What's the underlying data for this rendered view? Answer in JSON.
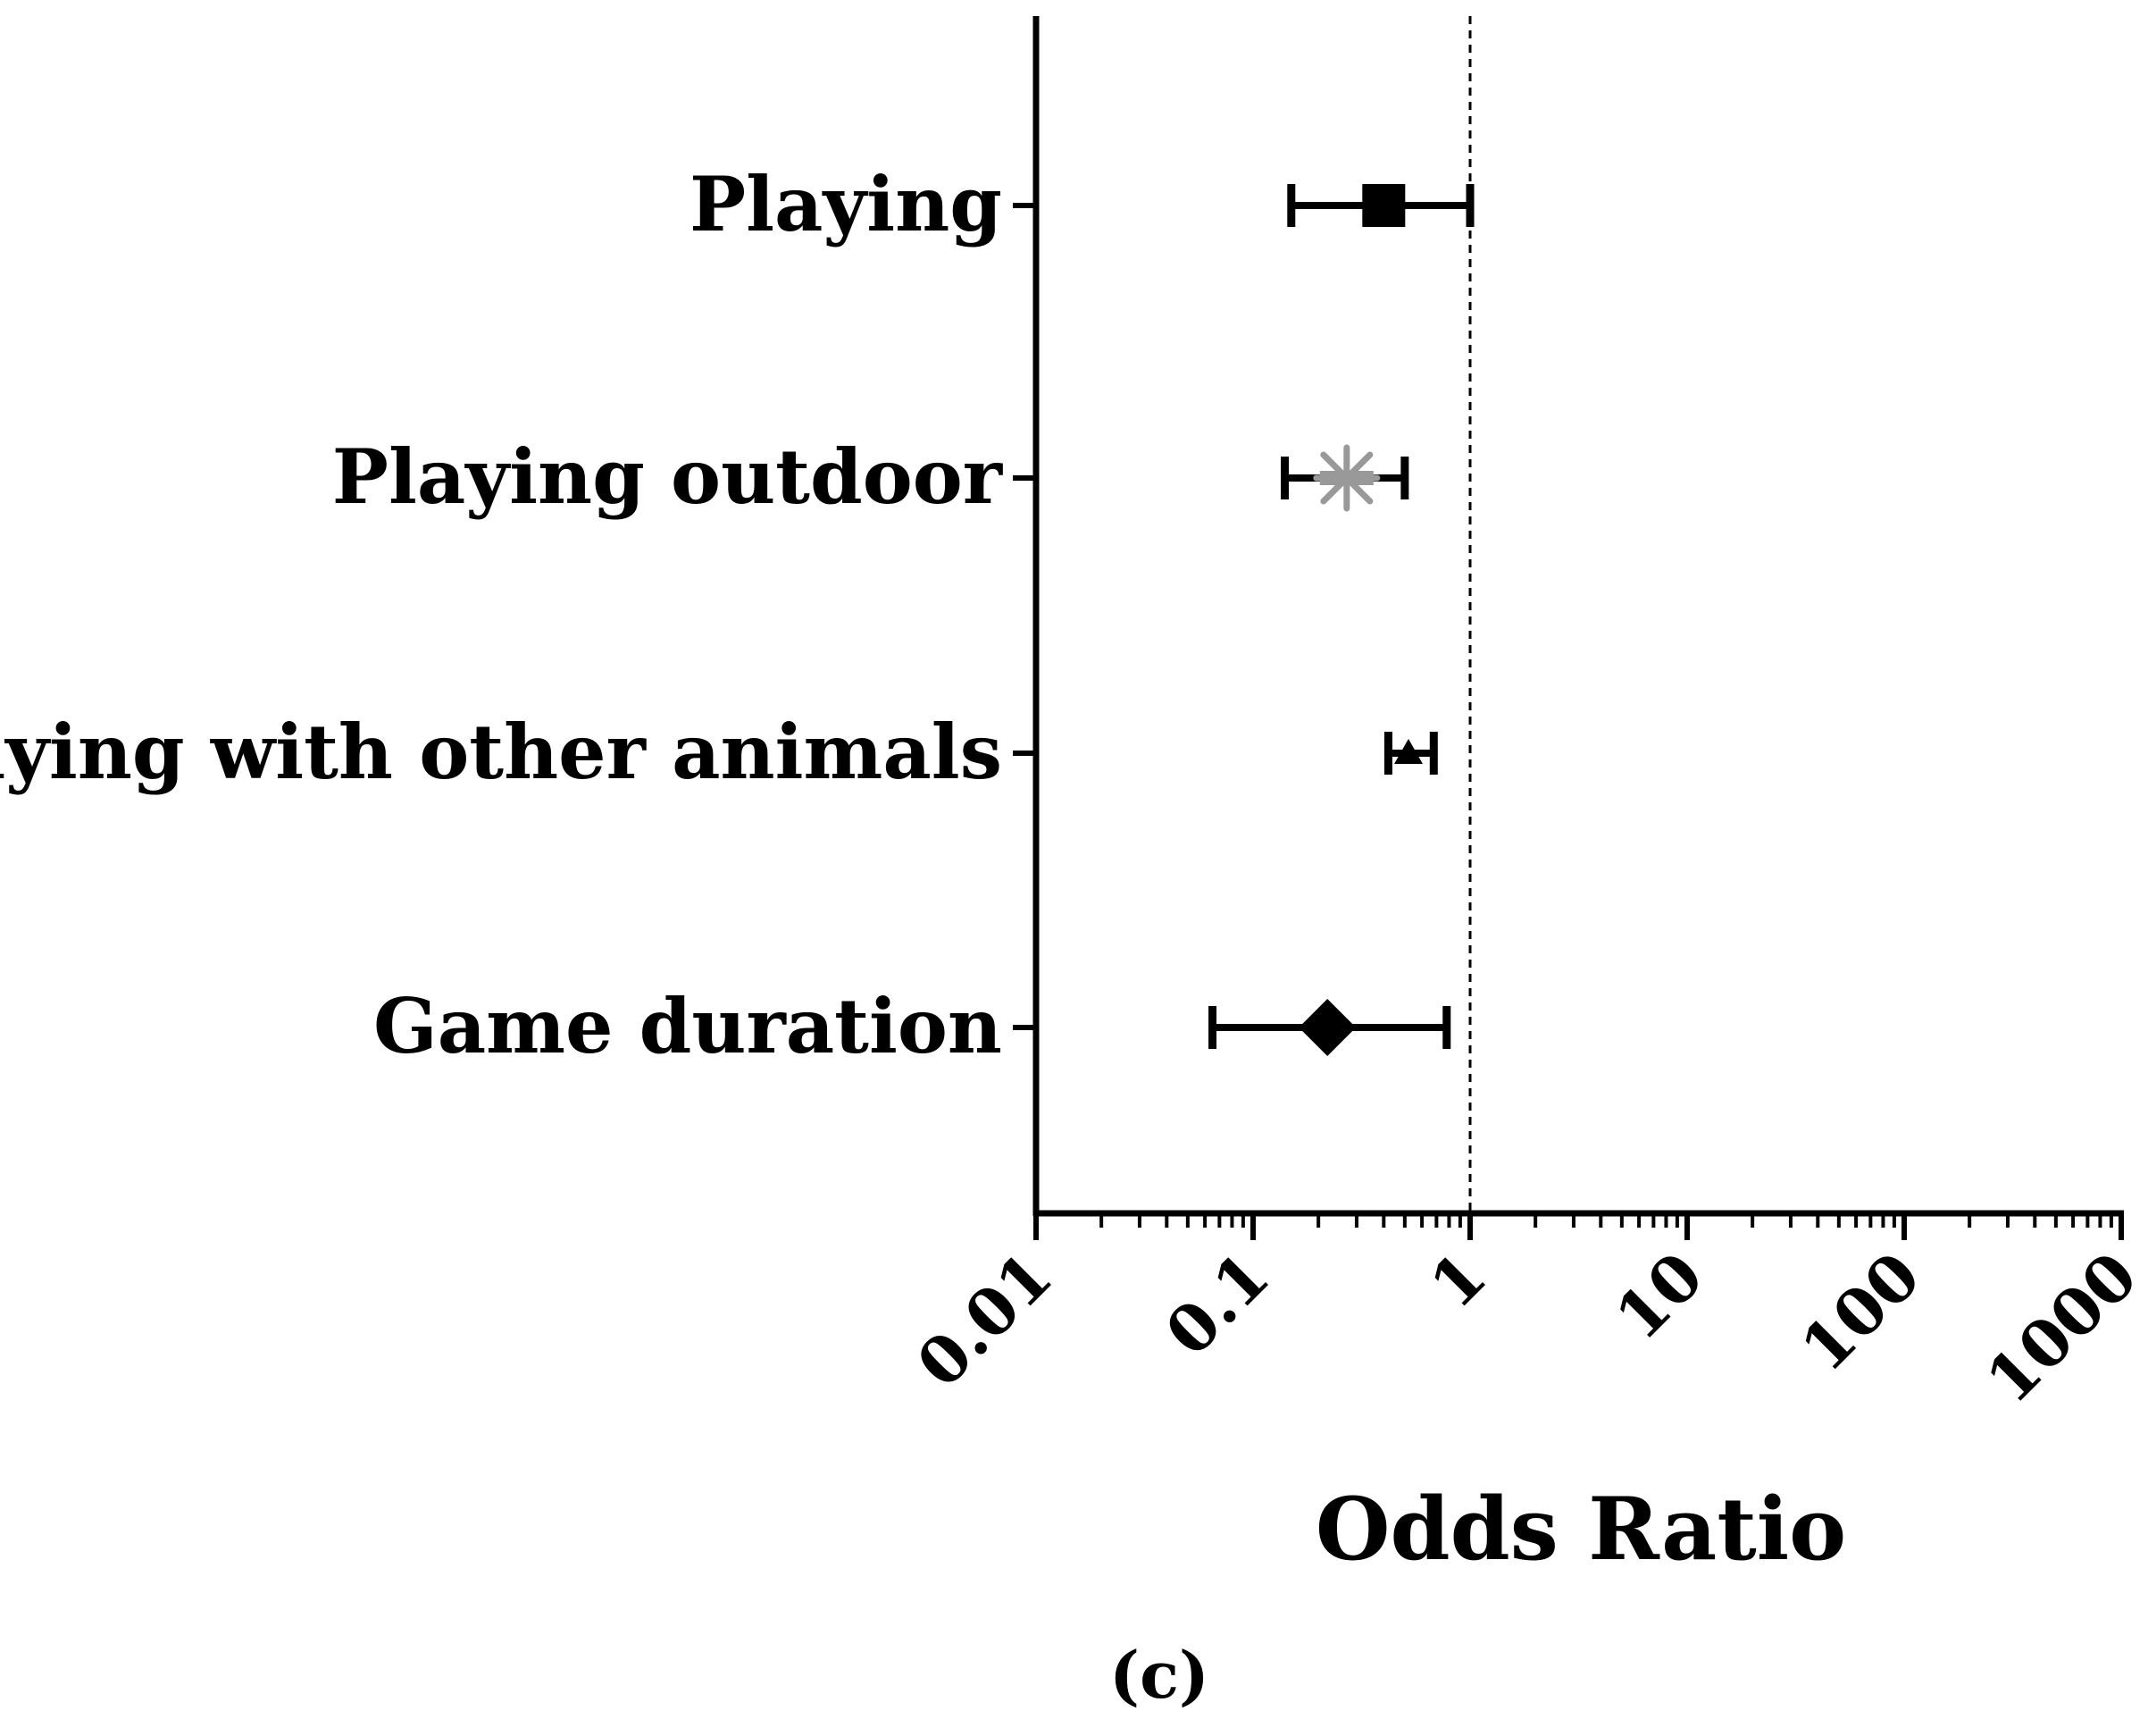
{
  "chart_data": {
    "type": "forest",
    "xscale": "log",
    "xlim": [
      0.01,
      1000
    ],
    "xticks": [
      "0.01",
      "0.1",
      "1",
      "10",
      "100",
      "1000"
    ],
    "xlabel": "Odds Ratio",
    "reference_line": 1,
    "panel_label": "(c)",
    "rows": [
      {
        "label": "Playing",
        "or": 0.4,
        "ci_low": 0.15,
        "ci_high": 1.0,
        "marker": "square",
        "color": "#000000"
      },
      {
        "label": "Playing outdoor",
        "or": 0.27,
        "ci_low": 0.14,
        "ci_high": 0.5,
        "marker": "asterisk",
        "color": "#999999"
      },
      {
        "label": "Playing with other animals",
        "or": 0.52,
        "ci_low": 0.42,
        "ci_high": 0.68,
        "marker": "triangle",
        "color": "#000000"
      },
      {
        "label": "Game duration",
        "or": 0.22,
        "ci_low": 0.065,
        "ci_high": 0.78,
        "marker": "diamond",
        "color": "#000000"
      }
    ]
  }
}
